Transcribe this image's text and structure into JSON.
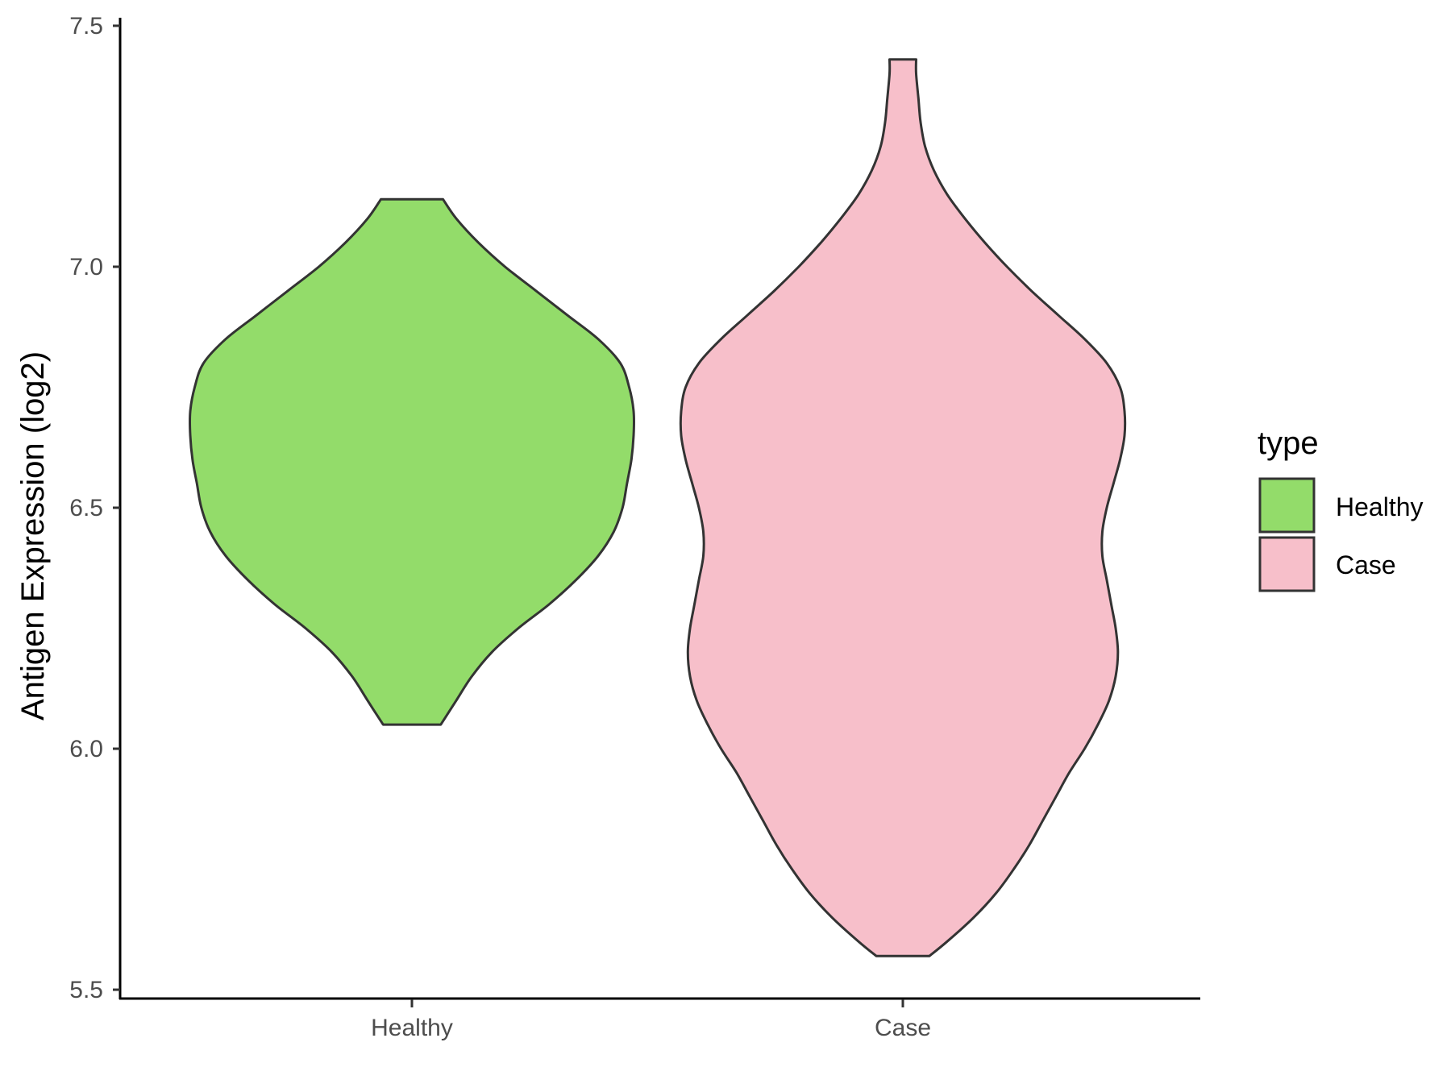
{
  "chart_data": {
    "type": "violin",
    "title": "",
    "xlabel": "",
    "ylabel": "Antigen Expression (log2)",
    "ylim": [
      5.48,
      7.52
    ],
    "yticks": [
      5.5,
      6.0,
      6.5,
      7.0,
      7.5
    ],
    "ytick_labels": [
      "5.5",
      "6.0",
      "6.5",
      "7.0",
      "7.5"
    ],
    "categories": [
      "Healthy",
      "Case"
    ],
    "grid": false,
    "legend": {
      "title": "type",
      "placement": "right",
      "entries": [
        "Healthy",
        "Case"
      ]
    },
    "series": [
      {
        "name": "Healthy",
        "color": "#93dc6a",
        "min": 6.05,
        "max": 7.14,
        "density": [
          [
            6.05,
            0.13
          ],
          [
            6.1,
            0.2
          ],
          [
            6.15,
            0.27
          ],
          [
            6.2,
            0.36
          ],
          [
            6.25,
            0.48
          ],
          [
            6.3,
            0.62
          ],
          [
            6.35,
            0.74
          ],
          [
            6.4,
            0.84
          ],
          [
            6.45,
            0.91
          ],
          [
            6.5,
            0.95
          ],
          [
            6.55,
            0.97
          ],
          [
            6.6,
            0.99
          ],
          [
            6.65,
            1.0
          ],
          [
            6.7,
            1.0
          ],
          [
            6.75,
            0.98
          ],
          [
            6.8,
            0.94
          ],
          [
            6.85,
            0.84
          ],
          [
            6.9,
            0.7
          ],
          [
            6.95,
            0.56
          ],
          [
            7.0,
            0.42
          ],
          [
            7.05,
            0.3
          ],
          [
            7.1,
            0.2
          ],
          [
            7.14,
            0.14
          ]
        ]
      },
      {
        "name": "Case",
        "color": "#f7bfca",
        "min": 5.57,
        "max": 7.43,
        "density": [
          [
            5.57,
            0.12
          ],
          [
            5.6,
            0.2
          ],
          [
            5.65,
            0.32
          ],
          [
            5.7,
            0.42
          ],
          [
            5.75,
            0.5
          ],
          [
            5.8,
            0.57
          ],
          [
            5.85,
            0.63
          ],
          [
            5.9,
            0.69
          ],
          [
            5.95,
            0.75
          ],
          [
            6.0,
            0.82
          ],
          [
            6.05,
            0.88
          ],
          [
            6.1,
            0.93
          ],
          [
            6.15,
            0.96
          ],
          [
            6.2,
            0.97
          ],
          [
            6.25,
            0.96
          ],
          [
            6.3,
            0.94
          ],
          [
            6.35,
            0.92
          ],
          [
            6.4,
            0.9
          ],
          [
            6.45,
            0.9
          ],
          [
            6.5,
            0.92
          ],
          [
            6.55,
            0.95
          ],
          [
            6.6,
            0.98
          ],
          [
            6.65,
            1.0
          ],
          [
            6.7,
            1.0
          ],
          [
            6.75,
            0.98
          ],
          [
            6.8,
            0.92
          ],
          [
            6.85,
            0.82
          ],
          [
            6.9,
            0.7
          ],
          [
            6.95,
            0.58
          ],
          [
            7.0,
            0.47
          ],
          [
            7.05,
            0.37
          ],
          [
            7.1,
            0.28
          ],
          [
            7.15,
            0.2
          ],
          [
            7.2,
            0.14
          ],
          [
            7.25,
            0.1
          ],
          [
            7.3,
            0.08
          ],
          [
            7.35,
            0.07
          ],
          [
            7.4,
            0.06
          ],
          [
            7.43,
            0.06
          ]
        ]
      }
    ]
  }
}
